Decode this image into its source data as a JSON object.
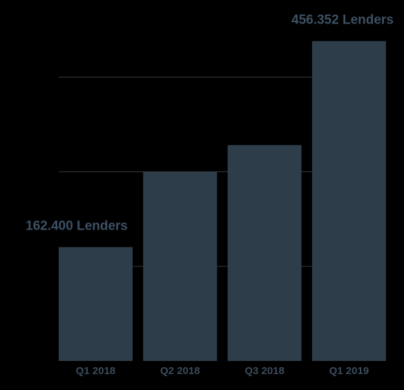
{
  "chart_data": {
    "type": "bar",
    "categories": [
      "Q1 2018",
      "Q2 2018",
      "Q3 2018",
      "Q1 2019"
    ],
    "values": [
      162400,
      270000,
      308000,
      456352
    ],
    "value_labels": [
      "162.400 Lenders",
      null,
      null,
      "456.352 Lenders"
    ],
    "color": "#2e3d4a",
    "ylim": [
      0,
      515000
    ],
    "yticks": [
      135000,
      270000,
      405000
    ],
    "grid": true
  }
}
